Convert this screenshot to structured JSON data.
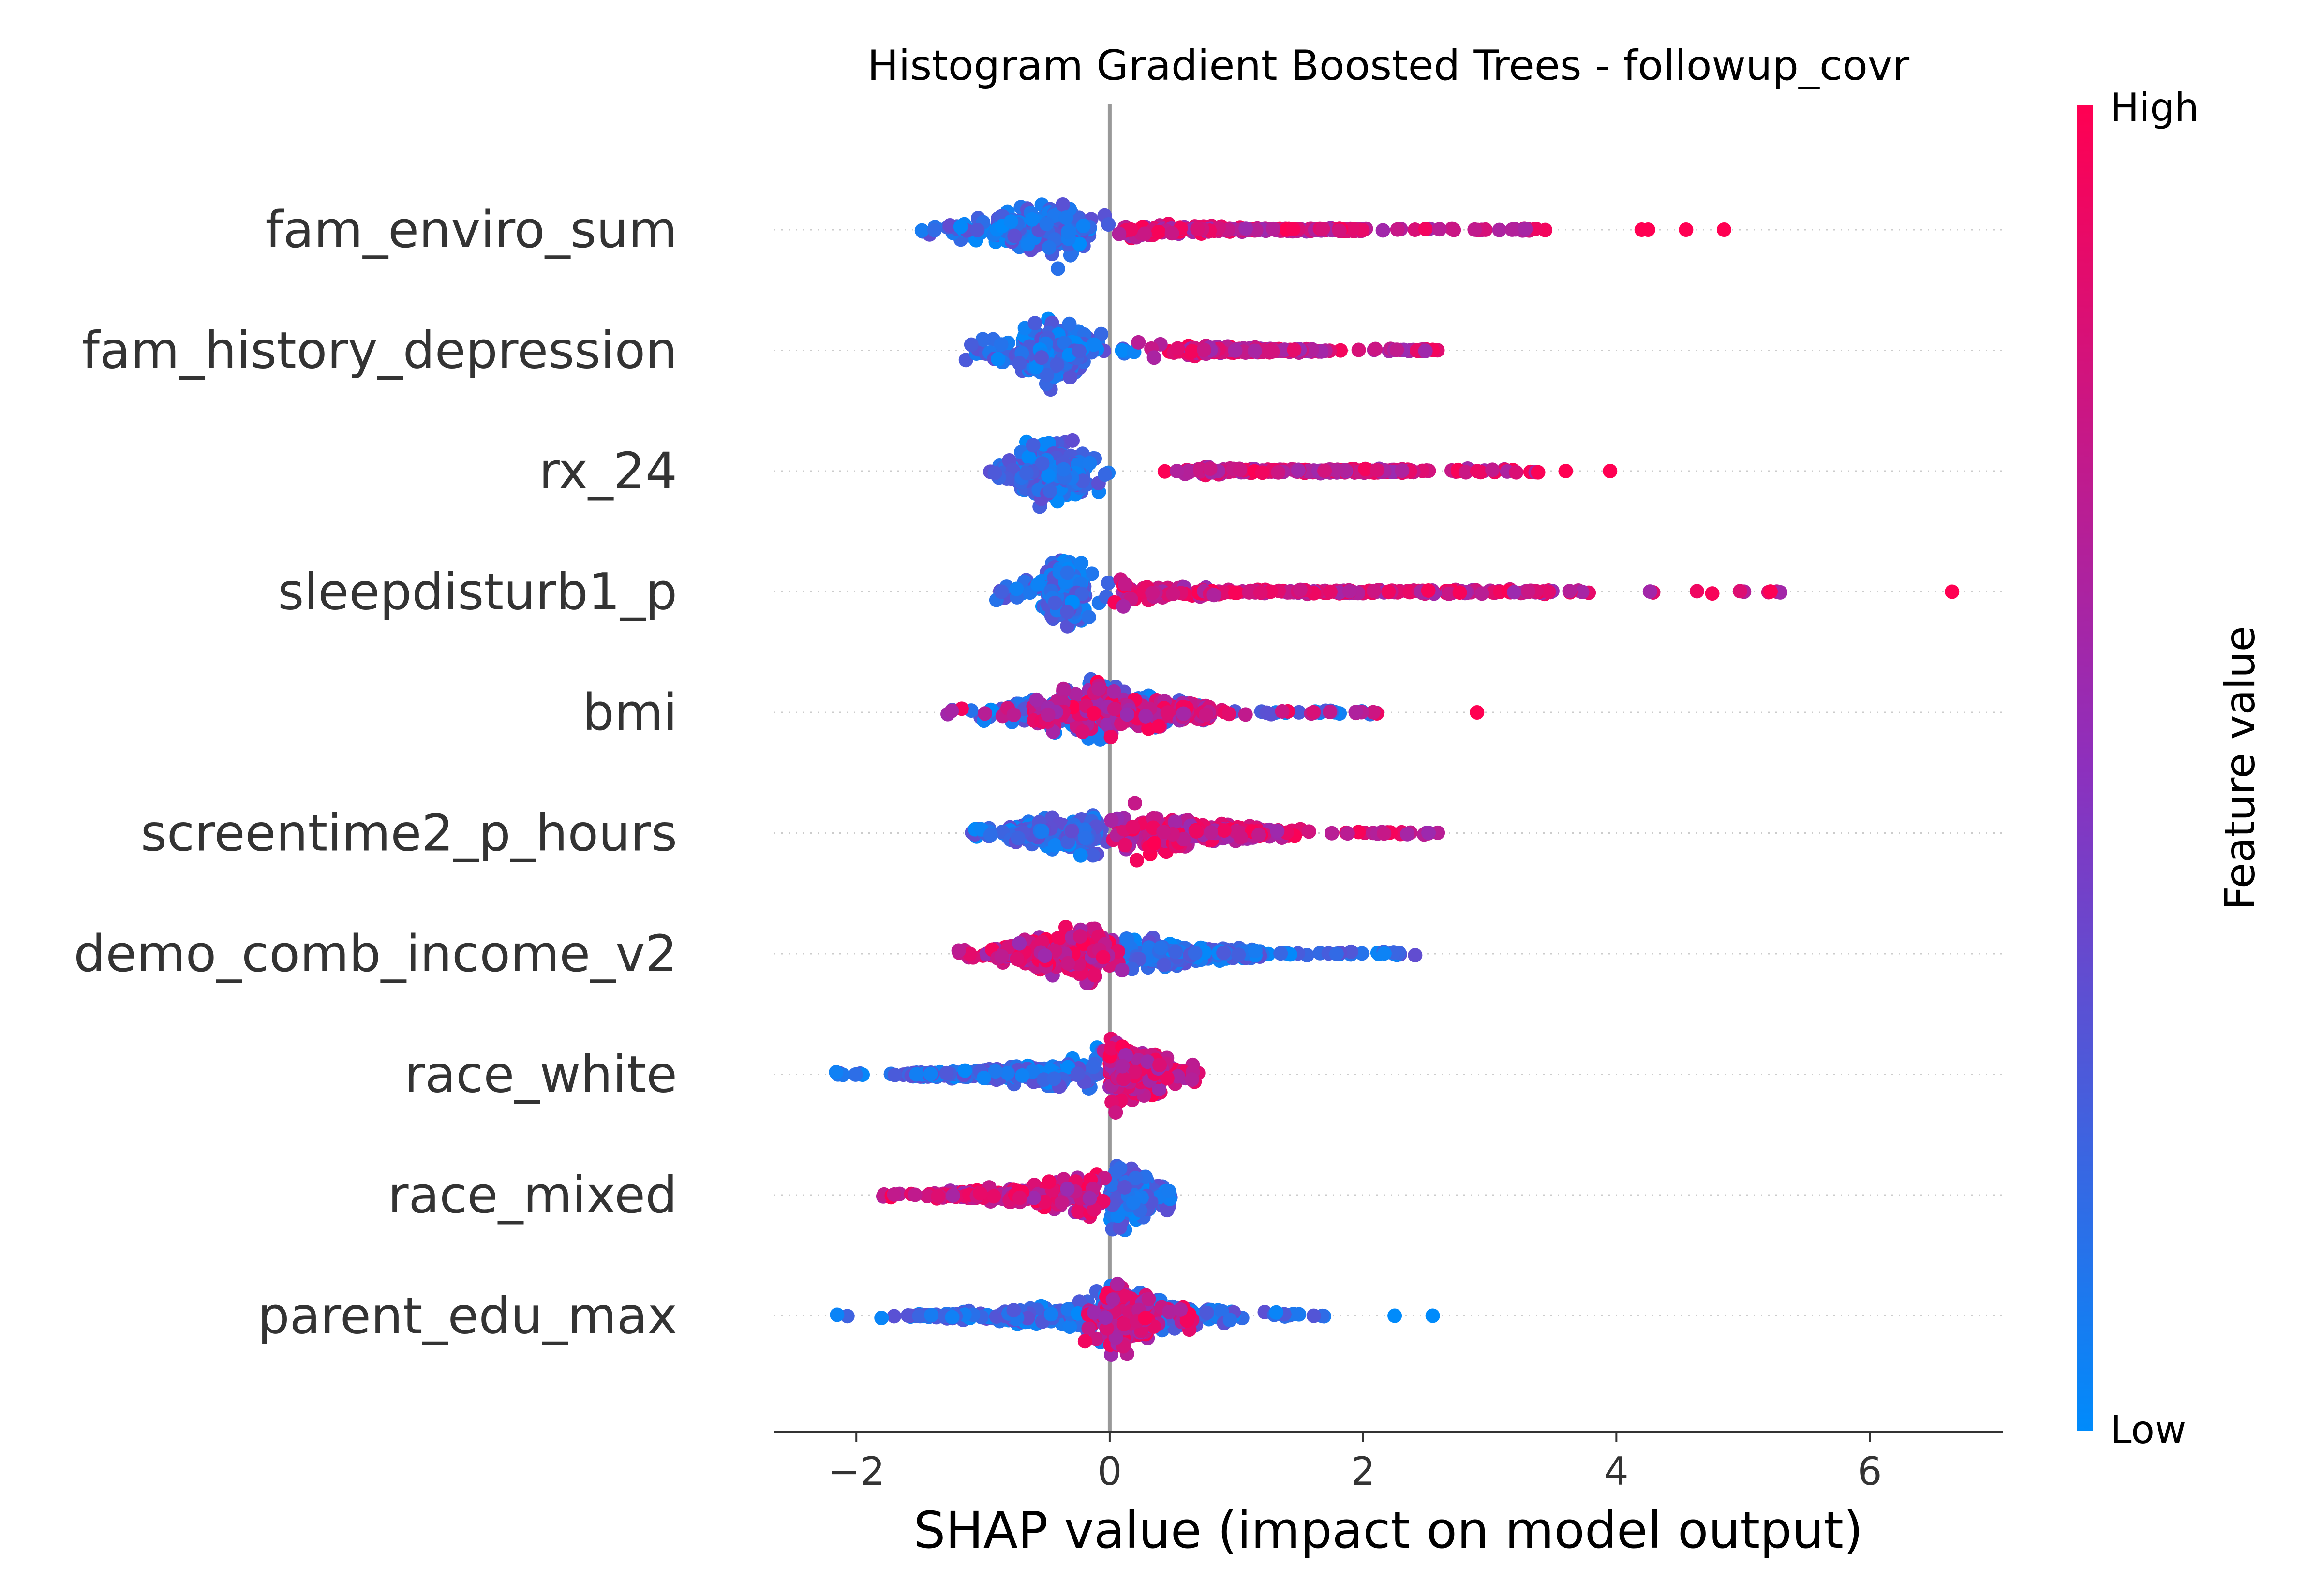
{
  "chart_data": {
    "type": "scatter",
    "subtype": "shap-beeswarm",
    "title": "Histogram Gradient Boosted Trees - followup_covr",
    "xlabel": "SHAP value (impact on model output)",
    "xlim": [
      -2.65,
      7.05
    ],
    "xticks": [
      -2,
      0,
      2,
      4,
      6
    ],
    "xtick_labels": [
      "−2",
      "0",
      "2",
      "4",
      "6"
    ],
    "colorbar": {
      "label": "Feature value",
      "high_label": "High",
      "low_label": "Low",
      "low_color": "#008bfb",
      "mid_color": "#8d30bd",
      "high_color": "#ff0052"
    },
    "features": [
      {
        "name": "fam_enviro_sum",
        "low_range": [
          -1.5,
          0.0
        ],
        "low_core": [
          -0.9,
          -0.2
        ],
        "high_range": [
          0.0,
          3.5
        ],
        "high_core": [
          0.1,
          2.0
        ],
        "outliers": [
          {
            "x": 4.2,
            "v": 1
          },
          {
            "x": 4.25,
            "v": 1
          },
          {
            "x": 4.55,
            "v": 1
          },
          {
            "x": 4.85,
            "v": 1
          }
        ],
        "dense_center": -0.5
      },
      {
        "name": "fam_history_depression",
        "low_range": [
          -1.2,
          0.2
        ],
        "low_core": [
          -0.7,
          -0.2
        ],
        "high_range": [
          0.2,
          2.6
        ],
        "high_core": [
          0.6,
          1.6
        ],
        "outliers": [],
        "dense_center": -0.45
      },
      {
        "name": "rx_24",
        "low_range": [
          -1.0,
          0.0
        ],
        "low_core": [
          -0.7,
          -0.2
        ],
        "high_range": [
          0.4,
          3.4
        ],
        "high_core": [
          0.6,
          2.4
        ],
        "outliers": [
          {
            "x": 3.6,
            "v": 1
          },
          {
            "x": 3.95,
            "v": 1
          }
        ],
        "dense_center": -0.45
      },
      {
        "name": "sleepdisturb1_p",
        "low_range": [
          -0.9,
          0.0
        ],
        "low_core": [
          -0.5,
          -0.2
        ],
        "high_range": [
          0.0,
          5.6
        ],
        "high_core": [
          0.1,
          3.5
        ],
        "outliers": [
          {
            "x": 6.65,
            "v": 1
          }
        ],
        "dense_center": -0.35
      },
      {
        "name": "bmi",
        "low_range": [
          -1.3,
          2.2
        ],
        "low_core": [
          -0.8,
          0.6
        ],
        "high_range": [
          -1.3,
          2.2
        ],
        "high_core": [
          -0.6,
          0.8
        ],
        "outliers": [
          {
            "x": 2.9,
            "v": 1
          }
        ],
        "dense_center": -0.1
      },
      {
        "name": "screentime2_p_hours",
        "low_range": [
          -1.1,
          0.0
        ],
        "low_core": [
          -0.8,
          -0.1
        ],
        "high_range": [
          0.0,
          2.65
        ],
        "high_core": [
          0.1,
          1.4
        ],
        "outliers": [],
        "dense_center": 0.1
      },
      {
        "name": "demo_comb_income_v2",
        "low_range": [
          0.0,
          2.45
        ],
        "low_core": [
          0.1,
          1.2
        ],
        "high_range": [
          -1.2,
          0.1
        ],
        "high_core": [
          -0.9,
          0.0
        ],
        "outliers": [],
        "dense_center": -0.1
      },
      {
        "name": "race_white",
        "low_range": [
          -2.2,
          -0.05
        ],
        "low_core": [
          -1.6,
          -0.1
        ],
        "high_range": [
          -0.05,
          0.7
        ],
        "high_core": [
          0.0,
          0.4
        ],
        "outliers": [],
        "dense_center": 0.05
      },
      {
        "name": "race_mixed",
        "low_range": [
          0.0,
          0.5
        ],
        "low_core": [
          0.0,
          0.3
        ],
        "high_range": [
          -1.8,
          0.0
        ],
        "high_core": [
          -1.4,
          -0.1
        ],
        "outliers": [],
        "dense_center": 0.08
      },
      {
        "name": "parent_edu_max",
        "low_range": [
          -2.2,
          1.7
        ],
        "low_core": [
          -1.6,
          1.0
        ],
        "high_range": [
          -0.2,
          0.7
        ],
        "high_core": [
          -0.05,
          0.3
        ],
        "outliers": [
          {
            "x": 2.25,
            "v": 0
          },
          {
            "x": 2.55,
            "v": 0
          }
        ],
        "dense_center": 0.05
      }
    ]
  }
}
